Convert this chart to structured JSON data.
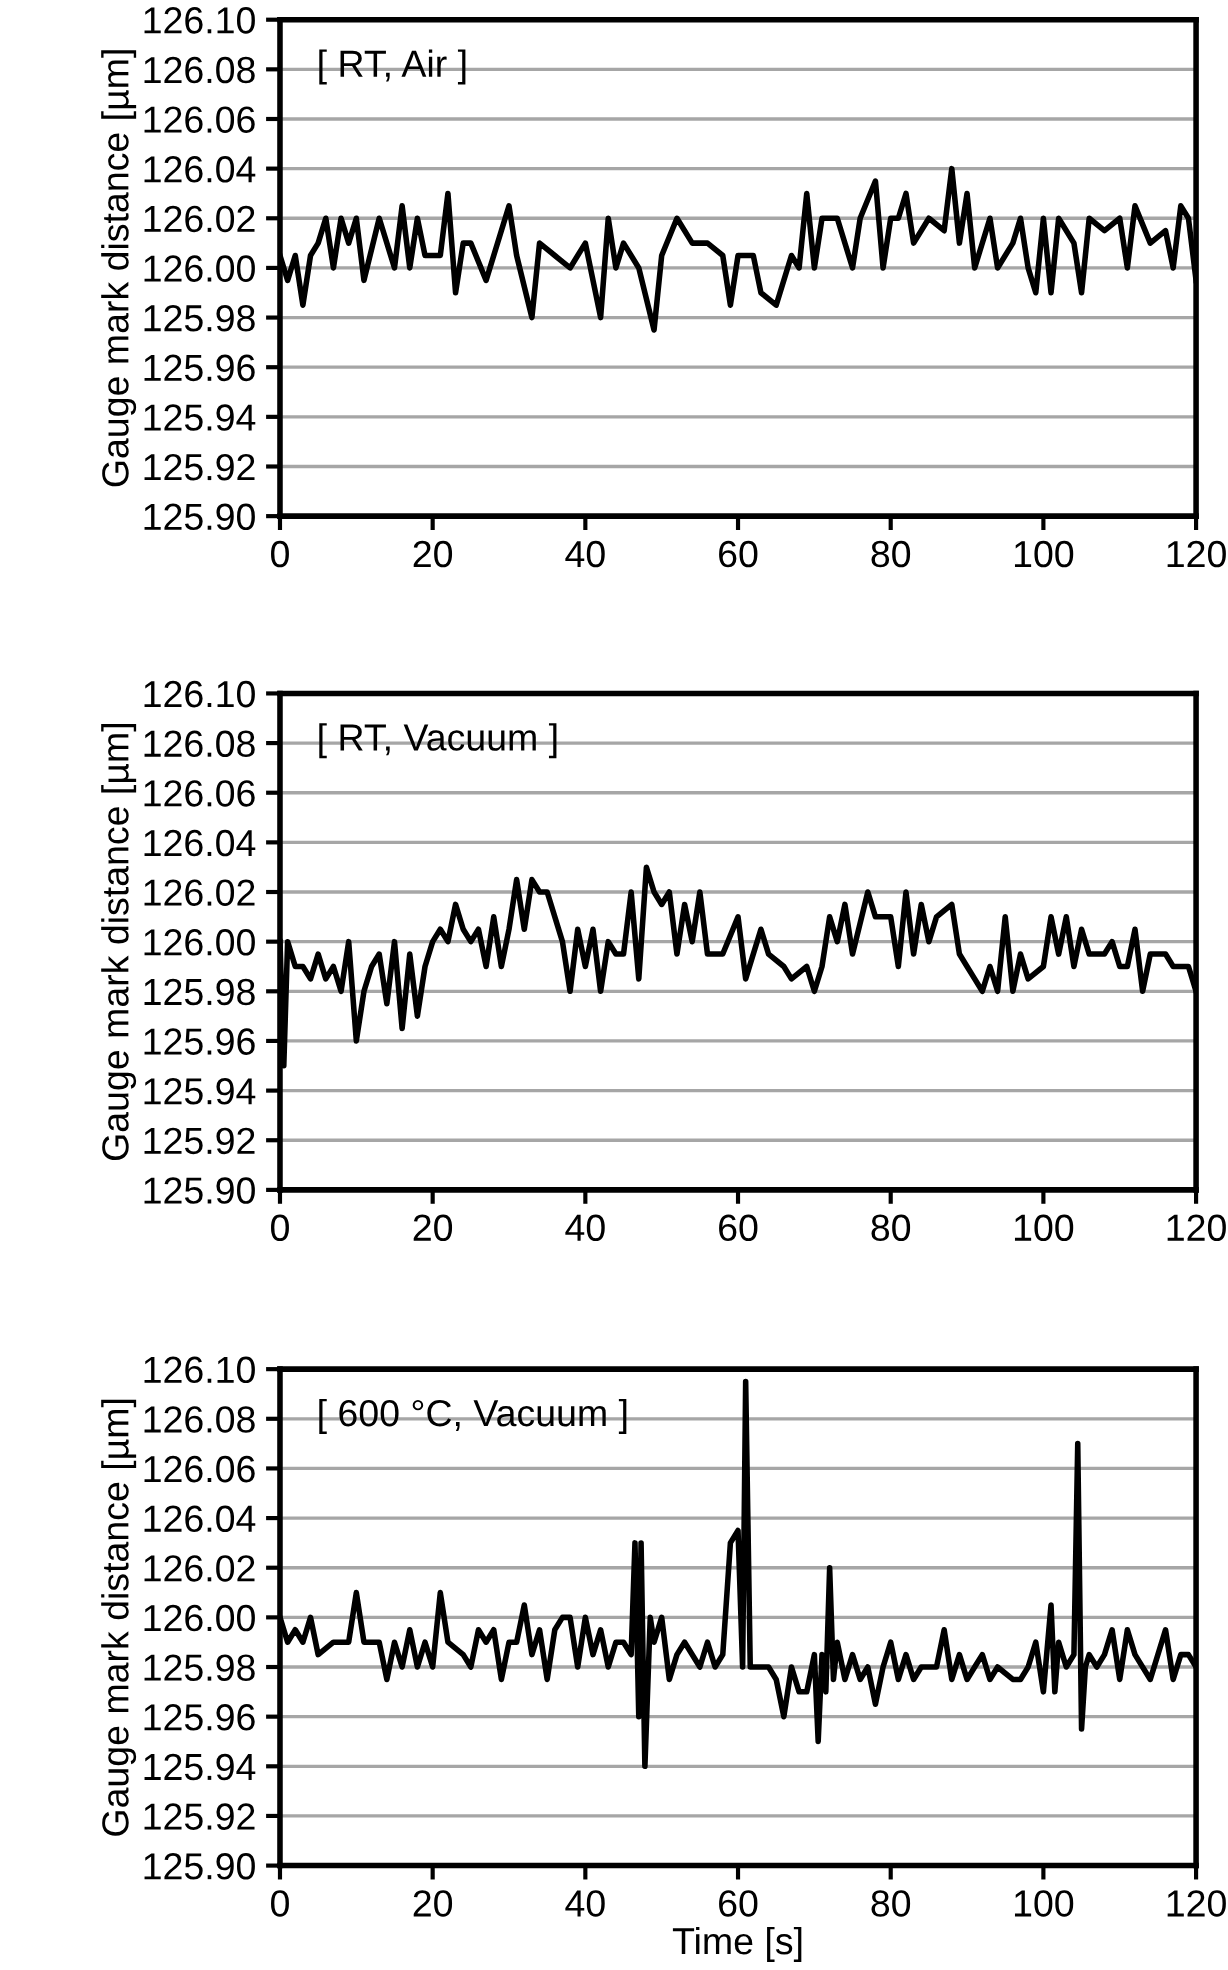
{
  "chart_data": [
    {
      "type": "line",
      "ylabel": "Gauge mark distance [µm]",
      "annotations": [
        "[ RT, Air ]"
      ],
      "xlim": [
        0,
        120
      ],
      "xticks": [
        0,
        20,
        40,
        60,
        80,
        100,
        120
      ],
      "ylim": [
        125.9,
        126.1
      ],
      "yticks": [
        {
          "value": 125.9,
          "label": "125.90"
        },
        {
          "value": 125.92,
          "label": "125.92"
        },
        {
          "value": 125.94,
          "label": "125.94"
        },
        {
          "value": 125.96,
          "label": "125.96"
        },
        {
          "value": 125.98,
          "label": "125.98"
        },
        {
          "value": 126.0,
          "label": "126.00"
        },
        {
          "value": 126.02,
          "label": "126.02"
        },
        {
          "value": 126.04,
          "label": "126.04"
        },
        {
          "value": 126.06,
          "label": "126.06"
        },
        {
          "value": 126.08,
          "label": "126.08"
        },
        {
          "value": 126.1,
          "label": "126.10"
        }
      ],
      "grid": "y",
      "line_style": "solid",
      "series": [
        {
          "color": "#000000",
          "x": [
            0,
            1,
            2,
            3,
            4,
            5,
            6,
            7,
            8,
            9,
            10,
            11,
            13,
            15,
            16,
            17,
            18,
            19,
            21,
            22,
            23,
            24,
            25,
            27,
            30,
            31,
            33,
            34,
            36,
            38,
            40,
            42,
            43,
            44,
            45,
            47,
            49,
            50,
            52,
            54,
            56,
            58,
            59,
            60,
            62,
            63,
            65,
            67,
            68,
            69,
            70,
            71,
            73,
            75,
            76,
            78,
            79,
            80,
            81,
            82,
            83,
            85,
            87,
            88,
            89,
            90,
            91,
            93,
            94,
            96,
            97,
            98,
            99,
            100,
            101,
            102,
            104,
            105,
            106,
            108,
            110,
            111,
            112,
            114,
            116,
            117,
            118,
            119,
            120
          ],
          "values": [
            126.005,
            125.995,
            126.005,
            125.985,
            126.005,
            126.01,
            126.02,
            126.0,
            126.02,
            126.01,
            126.02,
            125.995,
            126.02,
            126.0,
            126.025,
            126.0,
            126.02,
            126.005,
            126.005,
            126.03,
            125.99,
            126.01,
            126.01,
            125.995,
            126.025,
            126.005,
            125.98,
            126.01,
            126.005,
            126.0,
            126.01,
            125.98,
            126.02,
            126.0,
            126.01,
            126.0,
            125.975,
            126.005,
            126.02,
            126.01,
            126.01,
            126.005,
            125.985,
            126.005,
            126.005,
            125.99,
            125.985,
            126.005,
            126.0,
            126.03,
            126.0,
            126.02,
            126.02,
            126.0,
            126.02,
            126.035,
            126.0,
            126.02,
            126.02,
            126.03,
            126.01,
            126.02,
            126.015,
            126.04,
            126.01,
            126.03,
            126.0,
            126.02,
            126.0,
            126.01,
            126.02,
            126.0,
            125.99,
            126.02,
            125.99,
            126.02,
            126.01,
            125.99,
            126.02,
            126.015,
            126.02,
            126.0,
            126.025,
            126.01,
            126.015,
            126.0,
            126.025,
            126.02,
            125.995
          ]
        }
      ]
    },
    {
      "type": "line",
      "ylabel": "Gauge mark distance [µm]",
      "annotations": [
        "[ RT, Vacuum ]"
      ],
      "xlim": [
        0,
        120
      ],
      "xticks": [
        0,
        20,
        40,
        60,
        80,
        100,
        120
      ],
      "ylim": [
        125.9,
        126.1
      ],
      "yticks": [
        {
          "value": 125.9,
          "label": "125.90"
        },
        {
          "value": 125.92,
          "label": "125.92"
        },
        {
          "value": 125.94,
          "label": "125.94"
        },
        {
          "value": 125.96,
          "label": "125.96"
        },
        {
          "value": 125.98,
          "label": "125.98"
        },
        {
          "value": 126.0,
          "label": "126.00"
        },
        {
          "value": 126.02,
          "label": "126.02"
        },
        {
          "value": 126.04,
          "label": "126.04"
        },
        {
          "value": 126.06,
          "label": "126.06"
        },
        {
          "value": 126.08,
          "label": "126.08"
        },
        {
          "value": 126.1,
          "label": "126.10"
        }
      ],
      "grid": "y",
      "line_style": "solid",
      "series": [
        {
          "color": "#000000",
          "x": [
            0,
            0.5,
            1,
            2,
            3,
            4,
            5,
            6,
            7,
            8,
            9,
            10,
            11,
            12,
            13,
            14,
            15,
            16,
            17,
            18,
            19,
            20,
            21,
            22,
            23,
            24,
            25,
            26,
            27,
            28,
            29,
            30,
            31,
            32,
            33,
            34,
            35,
            37,
            38,
            39,
            40,
            41,
            42,
            43,
            44,
            45,
            46,
            47,
            48,
            49,
            50,
            51,
            52,
            53,
            54,
            55,
            56,
            58,
            60,
            61,
            63,
            64,
            66,
            67,
            69,
            70,
            71,
            72,
            73,
            74,
            75,
            77,
            78,
            80,
            81,
            82,
            83,
            84,
            85,
            86,
            88,
            89,
            90,
            91,
            92,
            93,
            94,
            95,
            96,
            97,
            98,
            100,
            101,
            102,
            103,
            104,
            105,
            106,
            108,
            109,
            110,
            111,
            112,
            113,
            114,
            116,
            117,
            118,
            119,
            120
          ],
          "values": [
            126.0,
            125.95,
            126.0,
            125.99,
            125.99,
            125.985,
            125.995,
            125.985,
            125.99,
            125.98,
            126.0,
            125.96,
            125.98,
            125.99,
            125.995,
            125.975,
            126.0,
            125.965,
            125.995,
            125.97,
            125.99,
            126.0,
            126.005,
            126.0,
            126.015,
            126.005,
            126.0,
            126.005,
            125.99,
            126.01,
            125.99,
            126.005,
            126.025,
            126.005,
            126.025,
            126.02,
            126.02,
            126.0,
            125.98,
            126.005,
            125.99,
            126.005,
            125.98,
            126.0,
            125.995,
            125.995,
            126.02,
            125.985,
            126.03,
            126.02,
            126.015,
            126.02,
            125.995,
            126.015,
            126.0,
            126.02,
            125.995,
            125.995,
            126.01,
            125.985,
            126.005,
            125.995,
            125.99,
            125.985,
            125.99,
            125.98,
            125.99,
            126.01,
            126.0,
            126.015,
            125.995,
            126.02,
            126.01,
            126.01,
            125.99,
            126.02,
            125.995,
            126.015,
            126.0,
            126.01,
            126.015,
            125.995,
            125.99,
            125.985,
            125.98,
            125.99,
            125.98,
            126.01,
            125.98,
            125.995,
            125.985,
            125.99,
            126.01,
            125.995,
            126.01,
            125.99,
            126.005,
            125.995,
            125.995,
            126.0,
            125.99,
            125.99,
            126.005,
            125.98,
            125.995,
            125.995,
            125.99,
            125.99,
            125.99,
            125.98
          ]
        }
      ]
    },
    {
      "type": "line",
      "xlabel": "Time [s]",
      "ylabel": "Gauge mark distance [µm]",
      "annotations": [
        "[ 600 °C, Vacuum ]"
      ],
      "xlim": [
        0,
        120
      ],
      "xticks": [
        0,
        20,
        40,
        60,
        80,
        100,
        120
      ],
      "ylim": [
        125.9,
        126.1
      ],
      "yticks": [
        {
          "value": 125.9,
          "label": "125.90"
        },
        {
          "value": 125.92,
          "label": "125.92"
        },
        {
          "value": 125.94,
          "label": "125.94"
        },
        {
          "value": 125.96,
          "label": "125.96"
        },
        {
          "value": 125.98,
          "label": "125.98"
        },
        {
          "value": 126.0,
          "label": "126.00"
        },
        {
          "value": 126.02,
          "label": "126.02"
        },
        {
          "value": 126.04,
          "label": "126.04"
        },
        {
          "value": 126.06,
          "label": "126.06"
        },
        {
          "value": 126.08,
          "label": "126.08"
        },
        {
          "value": 126.1,
          "label": "126.10"
        }
      ],
      "grid": "y",
      "line_style": "solid",
      "series": [
        {
          "color": "#000000",
          "x": [
            0,
            1,
            2,
            3,
            4,
            5,
            7,
            9,
            10,
            11,
            13,
            14,
            15,
            16,
            17,
            18,
            19,
            20,
            21,
            22,
            24,
            25,
            26,
            27,
            28,
            29,
            30,
            31,
            32,
            33,
            34,
            35,
            36,
            37,
            38,
            39,
            40,
            41,
            42,
            43,
            44,
            45,
            46,
            46.5,
            47,
            47.3,
            47.8,
            48.5,
            49,
            50,
            51,
            52,
            53,
            55,
            56,
            57,
            58,
            59,
            60,
            60.6,
            61,
            61.6,
            62,
            64,
            65,
            66,
            67,
            68,
            69,
            70,
            70.5,
            71,
            71.5,
            72,
            72.5,
            73,
            74,
            75,
            76,
            77,
            78,
            79,
            80,
            81,
            82,
            83,
            84,
            86,
            87,
            88,
            89,
            90,
            91,
            92,
            93,
            94,
            96,
            97,
            98,
            99,
            100,
            101,
            101.5,
            102,
            103,
            104,
            104.5,
            105,
            105.5,
            106,
            107,
            108,
            109,
            110,
            111,
            112,
            114,
            115,
            116,
            117,
            118,
            119,
            120
          ],
          "values": [
            126.0,
            125.99,
            125.995,
            125.99,
            126.0,
            125.985,
            125.99,
            125.99,
            126.01,
            125.99,
            125.99,
            125.975,
            125.99,
            125.98,
            125.995,
            125.98,
            125.99,
            125.98,
            126.01,
            125.99,
            125.985,
            125.98,
            125.995,
            125.99,
            125.995,
            125.975,
            125.99,
            125.99,
            126.005,
            125.985,
            125.995,
            125.975,
            125.995,
            126.0,
            126.0,
            125.98,
            126.0,
            125.985,
            125.995,
            125.98,
            125.99,
            125.99,
            125.985,
            126.03,
            125.96,
            126.03,
            125.94,
            126.0,
            125.99,
            126.0,
            125.975,
            125.985,
            125.99,
            125.98,
            125.99,
            125.98,
            125.985,
            126.03,
            126.035,
            125.98,
            126.095,
            125.98,
            125.98,
            125.98,
            125.975,
            125.96,
            125.98,
            125.97,
            125.97,
            125.985,
            125.95,
            125.985,
            125.97,
            126.02,
            125.975,
            125.99,
            125.975,
            125.985,
            125.975,
            125.98,
            125.965,
            125.98,
            125.99,
            125.975,
            125.985,
            125.975,
            125.98,
            125.98,
            125.995,
            125.975,
            125.985,
            125.975,
            125.98,
            125.985,
            125.975,
            125.98,
            125.975,
            125.975,
            125.98,
            125.99,
            125.97,
            126.005,
            125.97,
            125.99,
            125.98,
            125.985,
            126.07,
            125.955,
            125.98,
            125.985,
            125.98,
            125.985,
            125.995,
            125.975,
            125.995,
            125.985,
            125.975,
            125.985,
            125.995,
            125.975,
            125.985,
            125.985,
            125.98
          ]
        }
      ]
    }
  ]
}
